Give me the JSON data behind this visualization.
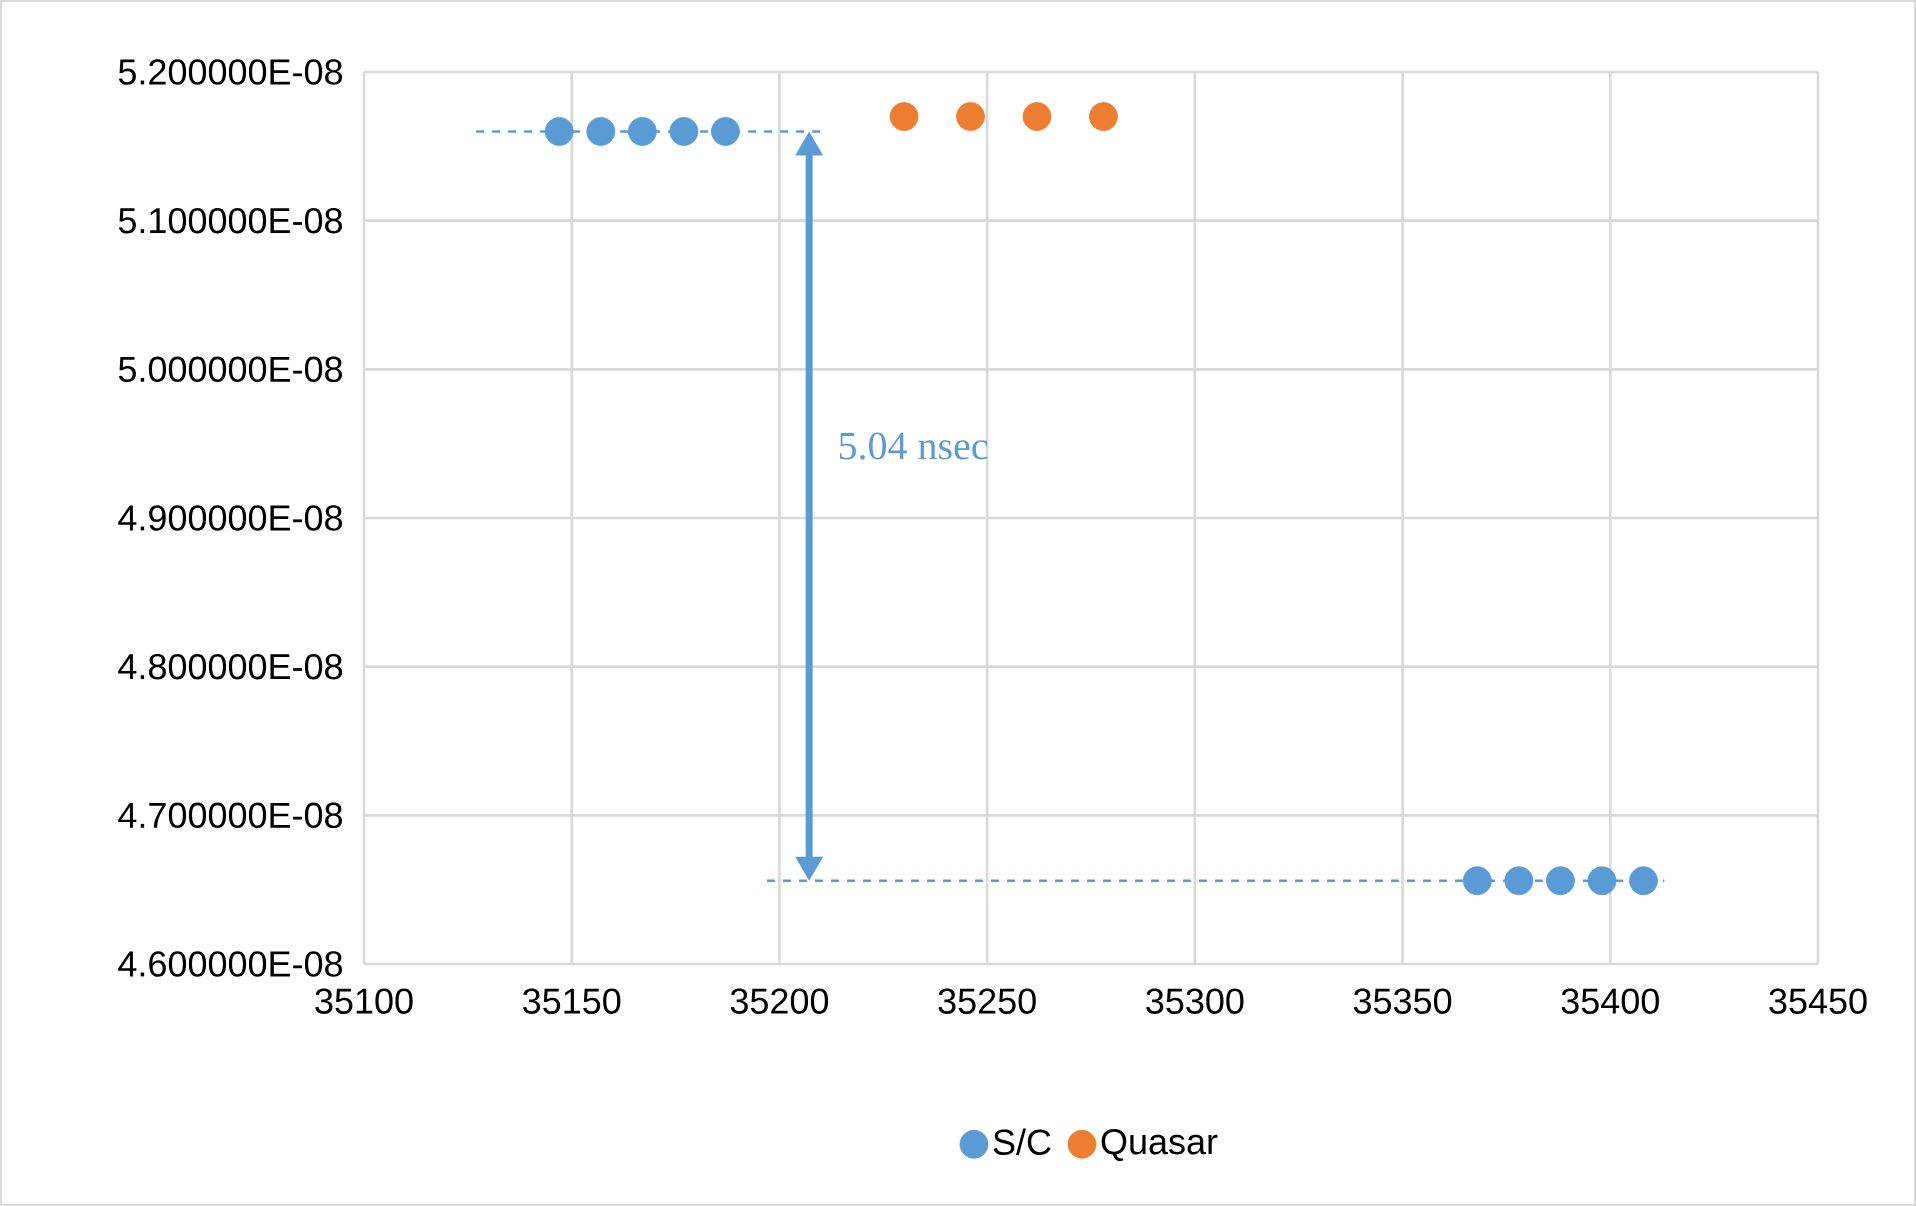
{
  "chart_data": {
    "type": "scatter",
    "xlim": [
      35100,
      35450
    ],
    "xticks": [
      35100,
      35150,
      35200,
      35250,
      35300,
      35350,
      35400,
      35450
    ],
    "ylim": [
      4.6e-08,
      5.2e-08
    ],
    "yticks": [
      {
        "value": 4.6e-08,
        "label": "4.600000E-08"
      },
      {
        "value": 4.7e-08,
        "label": "4.700000E-08"
      },
      {
        "value": 4.8e-08,
        "label": "4.800000E-08"
      },
      {
        "value": 4.9e-08,
        "label": "4.900000E-08"
      },
      {
        "value": 5e-08,
        "label": "5.000000E-08"
      },
      {
        "value": 5.1e-08,
        "label": "5.100000E-08"
      },
      {
        "value": 5.2e-08,
        "label": "5.200000E-08"
      }
    ],
    "grid": true,
    "legend": "bottom",
    "marker": "circle",
    "series": [
      {
        "name": "S/C",
        "color": "#5b9bd5",
        "x": [
          35147,
          35157,
          35167,
          35177,
          35187,
          35368,
          35378,
          35388,
          35398,
          35408
        ],
        "values": [
          5.16e-08,
          5.16e-08,
          5.16e-08,
          5.16e-08,
          5.16e-08,
          4.656e-08,
          4.656e-08,
          4.656e-08,
          4.656e-08,
          4.656e-08
        ]
      },
      {
        "name": "Quasar",
        "color": "#ed7d31",
        "x": [
          35230,
          35246,
          35262,
          35278
        ],
        "values": [
          5.17e-08,
          5.17e-08,
          5.17e-08,
          5.17e-08
        ]
      },
      {
        "type": "line",
        "color": "#5b9bd5",
        "line_style": "dashed",
        "marker": "none",
        "x": [
          35127,
          35211
        ],
        "values": [
          5.16e-08,
          5.16e-08
        ]
      },
      {
        "type": "line",
        "color": "#5b9bd5",
        "line_style": "dashed",
        "marker": "none",
        "x": [
          35197,
          35413
        ],
        "values": [
          4.656e-08,
          4.656e-08
        ]
      }
    ],
    "annotations": [
      "5.04 nsec"
    ]
  }
}
